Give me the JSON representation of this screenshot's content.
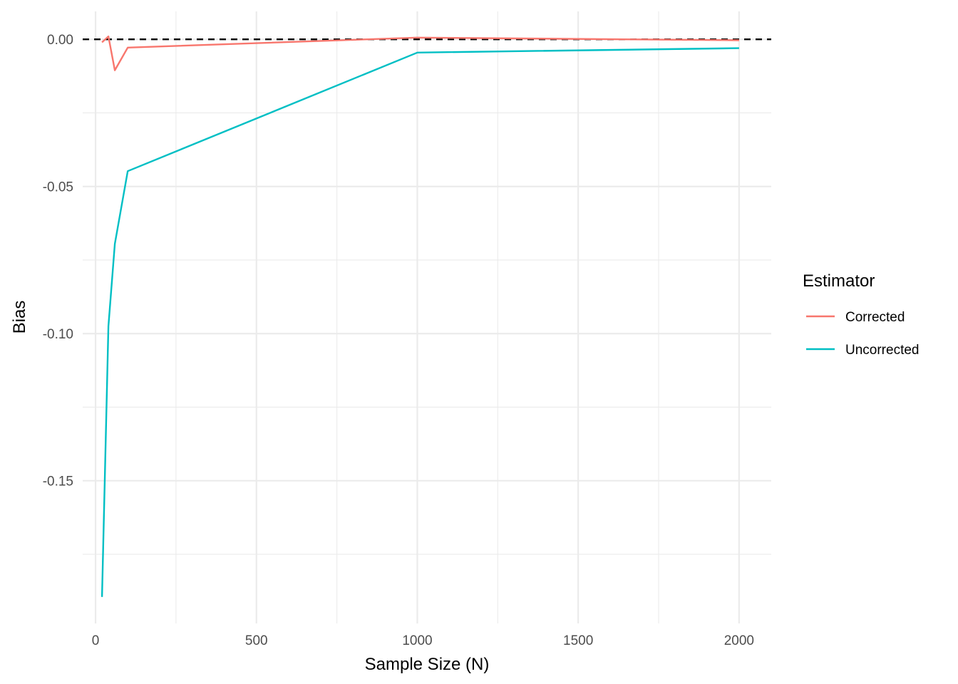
{
  "chart_data": {
    "type": "line",
    "title": "",
    "xlabel": "Sample Size (N)",
    "ylabel": "Bias",
    "xlim": [
      -40,
      2100
    ],
    "ylim": [
      -0.1985,
      0.0095
    ],
    "x_ticks": [
      0,
      500,
      1000,
      1500,
      2000
    ],
    "x_tick_labels": [
      "0",
      "500",
      "1000",
      "1500",
      "2000"
    ],
    "y_ticks": [
      0.0,
      -0.05,
      -0.1,
      -0.15
    ],
    "y_tick_labels": [
      "0.00",
      "-0.05",
      "-0.10",
      "-0.15"
    ],
    "grid": true,
    "reference_line": {
      "y": 0,
      "style": "dashed",
      "color": "#000000"
    },
    "legend": {
      "title": "Estimator",
      "position": "right"
    },
    "series": [
      {
        "name": "Corrected",
        "color": "#F8766D",
        "x": [
          20,
          40,
          60,
          100,
          1000,
          2000
        ],
        "y": [
          -0.001,
          0.001,
          -0.0105,
          -0.0028,
          0.0006,
          -0.0003
        ]
      },
      {
        "name": "Uncorrected",
        "color": "#00BFC4",
        "x": [
          20,
          40,
          60,
          100,
          1000,
          2000
        ],
        "y": [
          -0.1895,
          -0.0975,
          -0.0695,
          -0.0448,
          -0.0045,
          -0.003
        ]
      }
    ]
  }
}
